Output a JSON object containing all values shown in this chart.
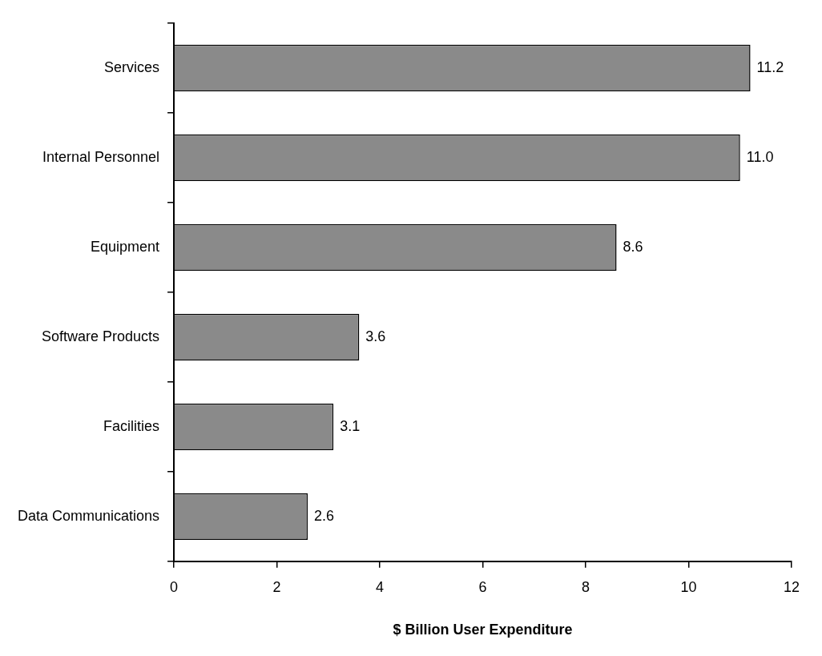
{
  "chart_data": {
    "type": "bar",
    "orientation": "horizontal",
    "xlabel": "$ Billion User Expenditure",
    "categories": [
      "Services",
      "Internal Personnel",
      "Equipment",
      "Software Products",
      "Facilities",
      "Data Communications"
    ],
    "values": [
      11.2,
      11.0,
      8.6,
      3.6,
      3.1,
      2.6
    ],
    "value_labels": [
      "11.2",
      "11.0",
      "8.6",
      "3.6",
      "3.1",
      "2.6"
    ],
    "color": "#8a8a8a",
    "xlim": [
      0,
      12
    ],
    "xticks": [
      0,
      2,
      4,
      6,
      8,
      10,
      12
    ],
    "grid": false,
    "legend": false
  }
}
